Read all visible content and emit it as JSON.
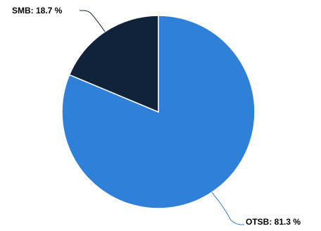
{
  "chart_data": {
    "type": "pie",
    "categories": [
      "OTSB",
      "SMB"
    ],
    "values": [
      81.3,
      18.7
    ],
    "labels": [
      "OTSB: 81.3 %",
      "SMB: 18.7 %"
    ],
    "colors": [
      "#2f80d8",
      "#10233b"
    ],
    "slice_border_color": "#ffffff",
    "leader_line_colors": [
      "#2f80d8",
      "#10233b"
    ],
    "title": ""
  }
}
